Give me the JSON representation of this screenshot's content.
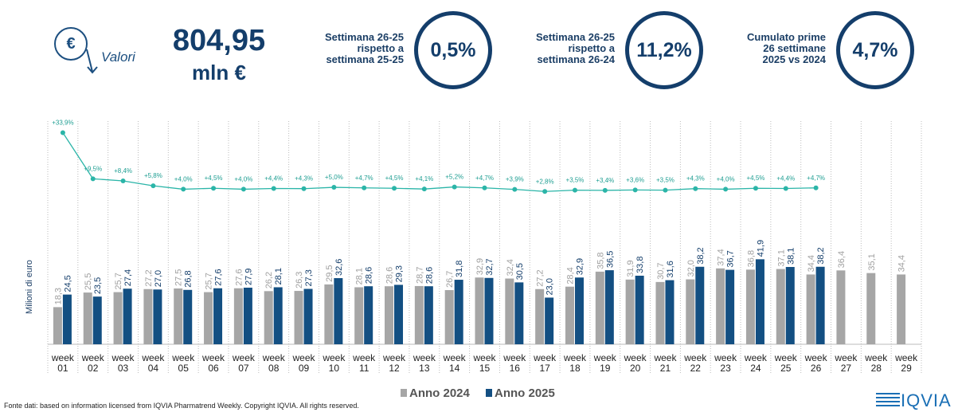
{
  "header": {
    "icon_label": "Valori",
    "total": {
      "value": 804.95,
      "label": "804,95"
    },
    "unit": "mln €",
    "kpis": [
      {
        "lines": [
          "Settimana 26-25",
          "rispetto a",
          "settimana 25-25"
        ],
        "value": 0.5,
        "value_label": "0,5%"
      },
      {
        "lines": [
          "Settimana 26-25",
          "rispetto a",
          "settimana 26-24"
        ],
        "value": 11.2,
        "value_label": "11,2%"
      },
      {
        "lines": [
          "Cumulato prime",
          "26 settimane",
          "2025 vs 2024"
        ],
        "value": 4.7,
        "value_label": "4,7%"
      }
    ]
  },
  "chart_data": {
    "type": "bar",
    "ylabel": "Milioni di euro",
    "categories": [
      "week 01",
      "week 02",
      "week 03",
      "week 04",
      "week 05",
      "week 06",
      "week 07",
      "week 08",
      "week 09",
      "week 10",
      "week 11",
      "week 12",
      "week 13",
      "week 14",
      "week 15",
      "week 16",
      "week 17",
      "week 18",
      "week 19",
      "week 20",
      "week 21",
      "week 22",
      "week 23",
      "week 24",
      "week 25",
      "week 26",
      "week 27",
      "week 28",
      "week 29"
    ],
    "ylim": [
      0,
      110
    ],
    "y2lim": [
      -78,
      40
    ],
    "grid": true,
    "series": [
      {
        "name": "Anno 2024",
        "color": "#a6a6a6",
        "values": [
          18.3,
          25.5,
          25.7,
          27.2,
          27.5,
          25.7,
          27.6,
          26.2,
          26.3,
          29.5,
          28.1,
          28.6,
          28.7,
          26.7,
          32.9,
          32.4,
          27.2,
          28.4,
          35.8,
          31.9,
          30.7,
          32.0,
          37.4,
          36.8,
          37.1,
          34.4,
          36.4,
          35.1,
          34.4
        ],
        "value_labels": [
          "18,3",
          "25,5",
          "25,7",
          "27,2",
          "27,5",
          "25,7",
          "27,6",
          "26,2",
          "26,3",
          "29,5",
          "28,1",
          "28,6",
          "28,7",
          "26,7",
          "32,9",
          "32,4",
          "27,2",
          "28,4",
          "35,8",
          "31,9",
          "30,7",
          "32,0",
          "37,4",
          "36,8",
          "37,1",
          "34,4",
          "36,4",
          "35,1",
          "34,4"
        ]
      },
      {
        "name": "Anno 2025",
        "color": "#134f82",
        "values": [
          24.5,
          23.5,
          27.4,
          27.0,
          26.8,
          27.6,
          27.9,
          28.1,
          27.3,
          32.6,
          28.6,
          29.3,
          28.6,
          31.8,
          32.7,
          30.5,
          23.0,
          32.9,
          36.5,
          33.8,
          31.6,
          38.2,
          36.7,
          41.9,
          38.1,
          38.2,
          null,
          null,
          null
        ],
        "value_labels": [
          "24,5",
          "23,5",
          "27,4",
          "27,0",
          "26,8",
          "27,6",
          "27,9",
          "28,1",
          "27,3",
          "32,6",
          "28,6",
          "29,3",
          "28,6",
          "31,8",
          "32,7",
          "30,5",
          "23,0",
          "32,9",
          "36,5",
          "33,8",
          "31,6",
          "38,2",
          "36,7",
          "41,9",
          "38,1",
          "38,2",
          null,
          null,
          null
        ]
      },
      {
        "type": "line",
        "axis": "y2",
        "color": "#2bb5a8",
        "values": [
          33.9,
          9.5,
          8.4,
          5.8,
          4.0,
          4.5,
          4.0,
          4.4,
          4.3,
          5.0,
          4.7,
          4.5,
          4.1,
          5.2,
          4.7,
          3.9,
          2.8,
          3.5,
          3.4,
          3.6,
          3.5,
          4.3,
          4.0,
          4.5,
          4.4,
          4.7,
          null,
          null,
          null
        ],
        "value_labels": [
          "+33,9%",
          "+9,5%",
          "+8,4%",
          "+5,8%",
          "+4,0%",
          "+4,5%",
          "+4,0%",
          "+4,4%",
          "+4,3%",
          "+5,0%",
          "+4,7%",
          "+4,5%",
          "+4,1%",
          "+5,2%",
          "+4,7%",
          "+3,9%",
          "+2,8%",
          "+3,5%",
          "+3,4%",
          "+3,6%",
          "+3,5%",
          "+4,3%",
          "+4,0%",
          "+4,5%",
          "+4,4%",
          "+4,7%",
          null,
          null,
          null
        ]
      }
    ]
  },
  "footer": {
    "source": "Fonte dati: based on information licensed from IQVIA Pharmatrend Weekly. Copyright IQVIA. All rights reserved.",
    "logo": "IQVIA"
  }
}
